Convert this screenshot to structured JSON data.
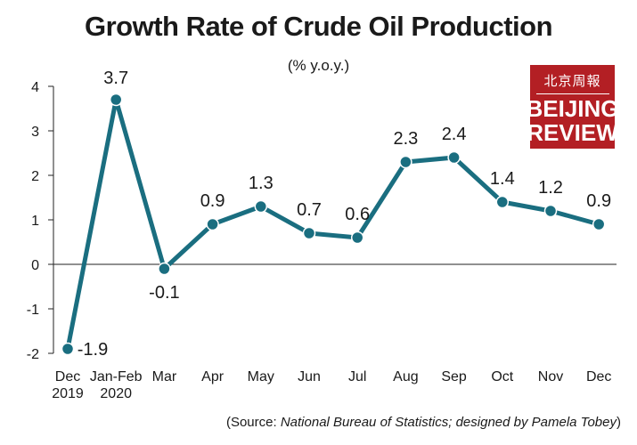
{
  "chart_data": {
    "type": "line",
    "title": "Growth Rate of Crude Oil Production",
    "subtitle": "(% y.o.y.)",
    "categories": [
      [
        "Dec",
        "2019"
      ],
      [
        "Jan-Feb",
        "2020"
      ],
      [
        "Mar"
      ],
      [
        "Apr"
      ],
      [
        "May"
      ],
      [
        "Jun"
      ],
      [
        "Jul"
      ],
      [
        "Aug"
      ],
      [
        "Sep"
      ],
      [
        "Oct"
      ],
      [
        "Nov"
      ],
      [
        "Dec"
      ]
    ],
    "values": [
      -1.9,
      3.7,
      -0.1,
      0.9,
      1.3,
      0.7,
      0.6,
      2.3,
      2.4,
      1.4,
      1.2,
      0.9
    ],
    "data_labels": [
      "-1.9",
      "3.7",
      "-0.1",
      "0.9",
      "1.3",
      "0.7",
      "0.6",
      "2.3",
      "2.4",
      "1.4",
      "1.2",
      "0.9"
    ],
    "yticks": [
      -2,
      -1,
      0,
      1,
      2,
      3,
      4
    ],
    "ytick_labels": [
      "-2",
      "-1",
      "0",
      "1",
      "2",
      "3",
      "4"
    ],
    "ylim": [
      -2,
      4
    ],
    "grid": false,
    "line_color": "#1a6e80",
    "marker_fill": "#1a6e80",
    "marker_stroke": "#ffffff",
    "axis_color": "#222222"
  },
  "logo": {
    "chinese": "北京周報",
    "line1": "BEIJING",
    "line2": "REVIEW",
    "background": "#b31f24"
  },
  "source": {
    "prefix": "(Source: ",
    "org": "National Bureau of Statistics; designed by Pamela Tobey",
    "suffix": ")"
  }
}
